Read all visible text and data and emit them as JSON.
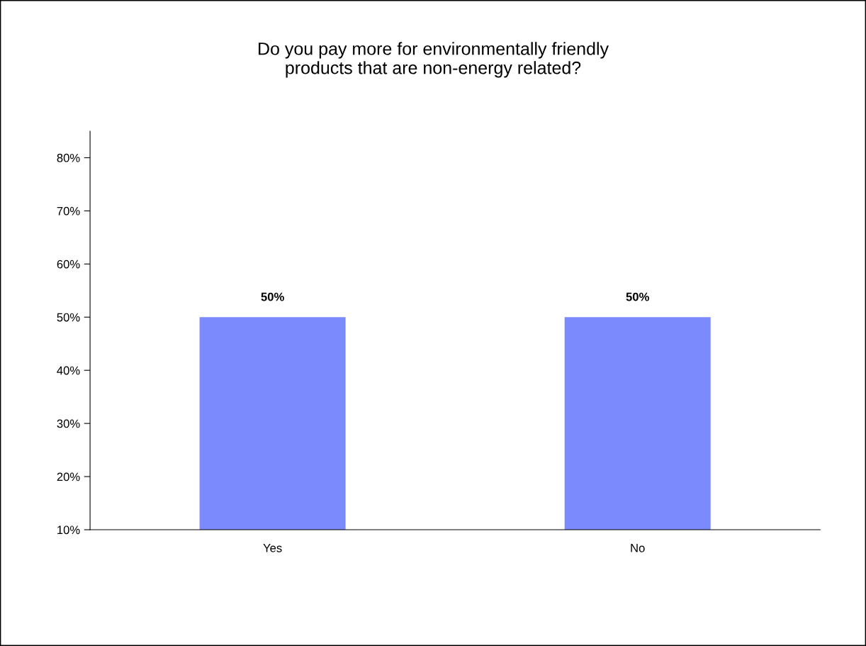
{
  "chart_data": {
    "type": "bar",
    "title": "Do you pay more for environmentally friendly\nproducts that are non-energy related?",
    "categories": [
      "Yes",
      "No"
    ],
    "values": [
      50,
      50
    ],
    "color": "#7b8afc",
    "value_labels": [
      "50%",
      "50%"
    ],
    "ylim": [
      10,
      85
    ],
    "yticks": [
      {
        "value": 10,
        "label": "10%"
      },
      {
        "value": 20,
        "label": "20%"
      },
      {
        "value": 30,
        "label": "30%"
      },
      {
        "value": 40,
        "label": "40%"
      },
      {
        "value": 50,
        "label": "50%"
      },
      {
        "value": 60,
        "label": "60%"
      },
      {
        "value": 70,
        "label": "70%"
      },
      {
        "value": 80,
        "label": "80%"
      }
    ],
    "grid": false,
    "legend": false
  }
}
